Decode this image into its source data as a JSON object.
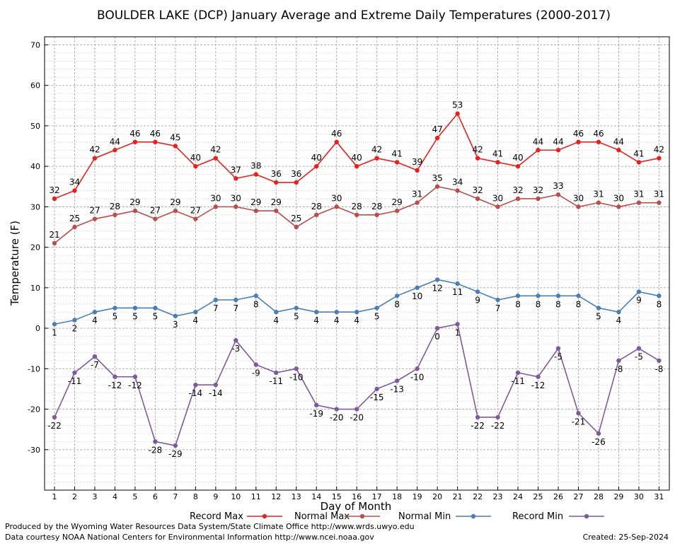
{
  "chart_data": {
    "type": "line",
    "title": "BOULDER LAKE (DCP) January Average and Extreme Daily Temperatures (2000-2017)",
    "xlabel": "Day of Month",
    "ylabel": "Temperature (F)",
    "ylim": [
      -40,
      72
    ],
    "yticks": [
      -30,
      -20,
      -10,
      0,
      10,
      20,
      30,
      40,
      50,
      60,
      70
    ],
    "grid": true,
    "legend_position": "bottom",
    "x": [
      1,
      2,
      3,
      4,
      5,
      6,
      7,
      8,
      9,
      10,
      11,
      12,
      13,
      14,
      15,
      16,
      17,
      18,
      19,
      20,
      21,
      22,
      23,
      24,
      25,
      26,
      27,
      28,
      29,
      30,
      31
    ],
    "series": [
      {
        "name": "Record Max",
        "color": "#e8211f",
        "label_side": "above",
        "values": [
          32,
          34,
          42,
          44,
          46,
          46,
          45,
          40,
          42,
          37,
          38,
          36,
          36,
          40,
          46,
          40,
          42,
          41,
          39,
          47,
          53,
          42,
          41,
          40,
          44,
          44,
          46,
          46,
          44,
          41,
          42
        ]
      },
      {
        "name": "Normal Max",
        "color": "#b84e4e",
        "label_side": "above",
        "values": [
          21,
          25,
          27,
          28,
          29,
          27,
          29,
          27,
          30,
          30,
          29,
          29,
          25,
          28,
          30,
          28,
          28,
          29,
          31,
          35,
          34,
          32,
          30,
          32,
          32,
          33,
          30,
          31,
          30,
          31,
          31
        ]
      },
      {
        "name": "Normal Min",
        "color": "#4a7fb5",
        "label_side": "below",
        "values": [
          1,
          2,
          4,
          5,
          5,
          5,
          3,
          4,
          7,
          7,
          8,
          4,
          5,
          4,
          4,
          4,
          5,
          8,
          10,
          12,
          11,
          9,
          7,
          8,
          8,
          8,
          8,
          5,
          4,
          9,
          8
        ]
      },
      {
        "name": "Record Min",
        "color": "#7e5a9b",
        "label_side": "below",
        "values": [
          -22,
          -11,
          -7,
          -12,
          -12,
          -28,
          -29,
          -14,
          -14,
          -3,
          -9,
          -11,
          -10,
          -19,
          -20,
          -20,
          -15,
          -13,
          -10,
          0,
          1,
          -22,
          -22,
          -11,
          -12,
          -5,
          -21,
          -26,
          -8,
          -5,
          -8
        ]
      }
    ]
  },
  "footer": {
    "produced_by": "Produced by the Wyoming Water Resources Data System/State Climate Office http://www.wrds.uwyo.edu",
    "data_courtesy": "Data courtesy NOAA National Centers for Environmental Information http://www.ncei.noaa.gov",
    "created": "Created:  25-Sep-2024"
  }
}
